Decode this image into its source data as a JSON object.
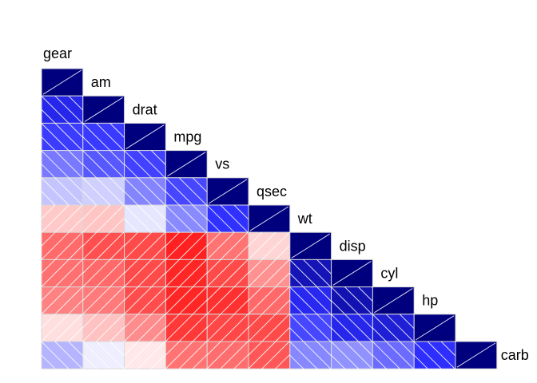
{
  "chart_data": {
    "type": "heatmap",
    "title": "",
    "variables": [
      "gear",
      "am",
      "drat",
      "mpg",
      "vs",
      "qsec",
      "wt",
      "disp",
      "cyl",
      "hp",
      "carb"
    ],
    "correlations": [
      [
        1.0
      ],
      [
        0.79,
        1.0
      ],
      [
        0.7,
        0.71,
        1.0
      ],
      [
        0.48,
        0.6,
        0.68,
        1.0
      ],
      [
        0.21,
        0.17,
        0.44,
        0.66,
        1.0
      ],
      [
        -0.21,
        -0.23,
        0.09,
        0.42,
        0.74,
        1.0
      ],
      [
        -0.58,
        -0.69,
        -0.71,
        -0.87,
        -0.55,
        -0.17,
        1.0
      ],
      [
        -0.56,
        -0.59,
        -0.71,
        -0.85,
        -0.71,
        -0.43,
        0.89,
        1.0
      ],
      [
        -0.49,
        -0.52,
        -0.7,
        -0.85,
        -0.81,
        -0.59,
        0.78,
        0.9,
        1.0
      ],
      [
        -0.13,
        -0.24,
        -0.45,
        -0.78,
        -0.72,
        -0.71,
        0.66,
        0.79,
        0.83,
        1.0
      ],
      [
        0.27,
        0.06,
        -0.09,
        -0.55,
        -0.57,
        -0.66,
        0.43,
        0.39,
        0.53,
        0.75,
        1.0
      ]
    ],
    "color_scale": {
      "negative": "#ff0000",
      "neutral": "#ffffff",
      "positive": "#00007f",
      "mid_positive": "#0000ff"
    },
    "range": [
      -1,
      1
    ],
    "grid": false,
    "legend": "none"
  }
}
